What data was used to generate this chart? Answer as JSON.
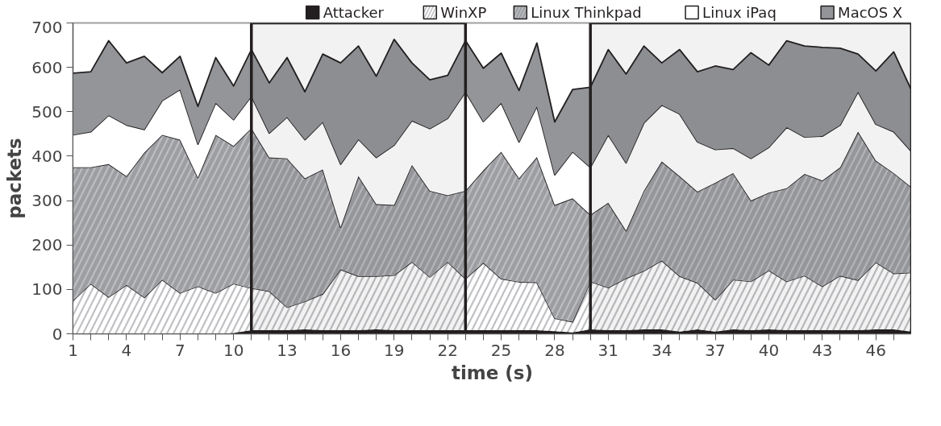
{
  "chart_data": {
    "type": "area",
    "stacked": true,
    "xlabel": "time (s)",
    "ylabel": "packets",
    "x": [
      1,
      2,
      3,
      4,
      5,
      6,
      7,
      8,
      9,
      10,
      11,
      12,
      13,
      14,
      15,
      16,
      17,
      18,
      19,
      20,
      21,
      22,
      23,
      24,
      25,
      26,
      27,
      28,
      29,
      30,
      31,
      32,
      33,
      34,
      35,
      36,
      37,
      38,
      39,
      40,
      41,
      42,
      43,
      44,
      45,
      46,
      47,
      48
    ],
    "series": [
      {
        "name": "Attacker",
        "color": "#231f20",
        "values": [
          0,
          0,
          0,
          0,
          0,
          0,
          0,
          0,
          0,
          2,
          8,
          8,
          8,
          10,
          8,
          8,
          8,
          10,
          8,
          8,
          8,
          8,
          8,
          8,
          8,
          8,
          8,
          6,
          3,
          10,
          8,
          8,
          10,
          10,
          5,
          10,
          5,
          10,
          8,
          10,
          8,
          8,
          8,
          8,
          8,
          10,
          10,
          5
        ]
      },
      {
        "name": "WinXP",
        "color": "#c0c1c4",
        "values": [
          75,
          113,
          83,
          110,
          82,
          122,
          92,
          107,
          92,
          111,
          95,
          88,
          52,
          63,
          82,
          137,
          122,
          120,
          124,
          154,
          120,
          154,
          116,
          152,
          116,
          109,
          108,
          29,
          24,
          108,
          96,
          117,
          132,
          155,
          125,
          105,
          72,
          112,
          110,
          133,
          110,
          123,
          99,
          123,
          113,
          151,
          126,
          133
        ]
      },
      {
        "name": "Linux Thinkpad",
        "color": "#bcbdc1",
        "values": [
          300,
          262,
          299,
          245,
          326,
          326,
          345,
          245,
          356,
          310,
          360,
          301,
          335,
          277,
          280,
          95,
          225,
          162,
          158,
          218,
          194,
          150,
          198,
          208,
          286,
          233,
          282,
          255,
          278,
          150,
          191,
          107,
          180,
          223,
          225,
          205,
          263,
          240,
          182,
          175,
          210,
          229,
          238,
          244,
          334,
          229,
          226,
          192
        ]
      },
      {
        "name": "Linux iPaq",
        "color": "#ffffff",
        "values": [
          73,
          80,
          110,
          115,
          52,
          77,
          113,
          75,
          72,
          59,
          72,
          55,
          93,
          87,
          107,
          142,
          83,
          105,
          135,
          100,
          140,
          173,
          223,
          110,
          110,
          82,
          114,
          68,
          105,
          107,
          153,
          153,
          153,
          127,
          140,
          112,
          75,
          56,
          95,
          102,
          137,
          83,
          100,
          95,
          90,
          82,
          93,
          80
        ]
      },
      {
        "name": "MacOS X",
        "color": "#939598",
        "values": [
          139,
          135,
          168,
          140,
          165,
          63,
          75,
          85,
          102,
          76,
          105,
          113,
          134,
          108,
          153,
          228,
          210,
          183,
          238,
          130,
          110,
          97,
          115,
          120,
          112,
          116,
          143,
          119,
          140,
          180,
          192,
          200,
          173,
          95,
          145,
          158,
          188,
          177,
          238,
          185,
          195,
          205,
          200,
          173,
          85,
          120,
          180,
          138
        ]
      }
    ],
    "xlim": [
      1,
      48
    ],
    "xticks": [
      1,
      {
        "value": 2,
        "label": null
      },
      {
        "value": 3,
        "label": null
      },
      4,
      {
        "value": 5,
        "label": null
      },
      {
        "value": 6,
        "label": null
      },
      7,
      {
        "value": 8,
        "label": null
      },
      {
        "value": 9,
        "label": null
      },
      10,
      {
        "value": 11,
        "label": null
      },
      {
        "value": 12,
        "label": null
      },
      13,
      {
        "value": 14,
        "label": null
      },
      {
        "value": 15,
        "label": null
      },
      16,
      {
        "value": 17,
        "label": null
      },
      {
        "value": 18,
        "label": null
      },
      19,
      {
        "value": 20,
        "label": null
      },
      {
        "value": 21,
        "label": null
      },
      22,
      {
        "value": 23,
        "label": null
      },
      {
        "value": 24,
        "label": null
      },
      25,
      {
        "value": 26,
        "label": null
      },
      {
        "value": 27,
        "label": null
      },
      28,
      {
        "value": 29,
        "label": null
      },
      {
        "value": 30,
        "label": null
      },
      31,
      {
        "value": 32,
        "label": null
      },
      {
        "value": 33,
        "label": null
      },
      34,
      {
        "value": 35,
        "label": null
      },
      {
        "value": 36,
        "label": null
      },
      37,
      {
        "value": 38,
        "label": null
      },
      {
        "value": 39,
        "label": null
      },
      40,
      {
        "value": 41,
        "label": null
      },
      {
        "value": 42,
        "label": null
      },
      43,
      {
        "value": 44,
        "label": null
      },
      {
        "value": 45,
        "label": null
      },
      46,
      {
        "value": 47,
        "label": null
      },
      {
        "value": 48,
        "label": null
      }
    ],
    "ylim": [
      0,
      700
    ],
    "yticks": [
      0,
      100,
      200,
      300,
      400,
      500,
      600,
      700
    ],
    "bands": [
      {
        "axis": "x",
        "from": 11,
        "to": 23,
        "color": "#231f20"
      },
      {
        "axis": "x",
        "from": 30,
        "to": 48,
        "color": "#231f20"
      }
    ],
    "grid": false,
    "legend": "top"
  }
}
